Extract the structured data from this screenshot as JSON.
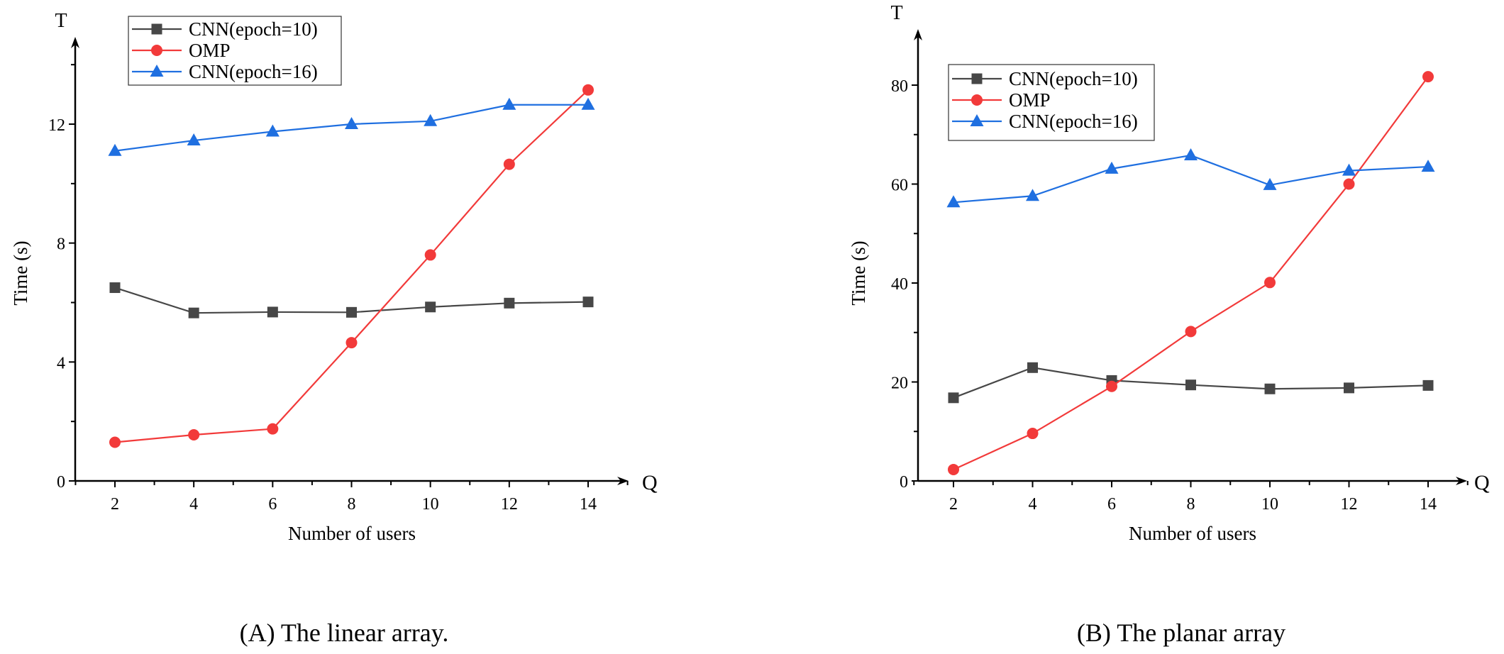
{
  "colors": {
    "cnn10": "#474747",
    "omp": "#f23a3a",
    "cnn16": "#1f6fe0",
    "axis": "#000000"
  },
  "chart_data": [
    {
      "type": "line",
      "caption": "(A)  The linear array.",
      "xlabel": "Number of users",
      "ylabel": "Time (s)",
      "x_axis_letter": "Q",
      "y_axis_letter": "T",
      "x": [
        2,
        4,
        6,
        8,
        10,
        12,
        14
      ],
      "xticks": [
        "2",
        "4",
        "6",
        "8",
        "10",
        "12",
        "14"
      ],
      "yticks": [
        "0",
        "4",
        "8",
        "12"
      ],
      "ytick_values": [
        0,
        4,
        8,
        12
      ],
      "xlim": [
        1,
        15
      ],
      "ylim": [
        0,
        14
      ],
      "legend": "top-left",
      "grid": false,
      "series": [
        {
          "name": "CNN(epoch=10)",
          "marker": "square",
          "color_key": "cnn10",
          "values": [
            6.5,
            5.65,
            5.68,
            5.67,
            5.85,
            5.98,
            6.02
          ]
        },
        {
          "name": "OMP",
          "marker": "circle",
          "color_key": "omp",
          "values": [
            1.3,
            1.55,
            1.75,
            4.65,
            7.6,
            10.65,
            13.15
          ]
        },
        {
          "name": "CNN(epoch=16)",
          "marker": "triangle",
          "color_key": "cnn16",
          "values": [
            11.1,
            11.45,
            11.75,
            12.0,
            12.1,
            12.65,
            12.65
          ]
        }
      ]
    },
    {
      "type": "line",
      "caption": "(B)  The planar array",
      "xlabel": "Number of users",
      "ylabel": "Time (s)",
      "x_axis_letter": "Q",
      "y_axis_letter": "T",
      "x": [
        2,
        4,
        6,
        8,
        10,
        12,
        14
      ],
      "xticks": [
        "2",
        "4",
        "6",
        "8",
        "10",
        "12",
        "14"
      ],
      "yticks": [
        "0",
        "20",
        "40",
        "60",
        "80"
      ],
      "ytick_values": [
        0,
        20,
        40,
        60,
        80
      ],
      "xlim": [
        1,
        15
      ],
      "ylim": [
        0,
        80
      ],
      "legend": "top-left",
      "grid": false,
      "series": [
        {
          "name": "CNN(epoch=10)",
          "marker": "square",
          "color_key": "cnn10",
          "values": [
            16.8,
            22.9,
            20.3,
            19.4,
            18.6,
            18.8,
            19.3
          ]
        },
        {
          "name": "OMP",
          "marker": "circle",
          "color_key": "omp",
          "values": [
            2.3,
            9.6,
            19.1,
            30.2,
            40.1,
            60.0,
            81.7
          ]
        },
        {
          "name": "CNN(epoch=16)",
          "marker": "triangle",
          "color_key": "cnn16",
          "values": [
            56.3,
            57.6,
            63.1,
            65.8,
            59.8,
            62.7,
            63.5
          ]
        }
      ]
    }
  ]
}
